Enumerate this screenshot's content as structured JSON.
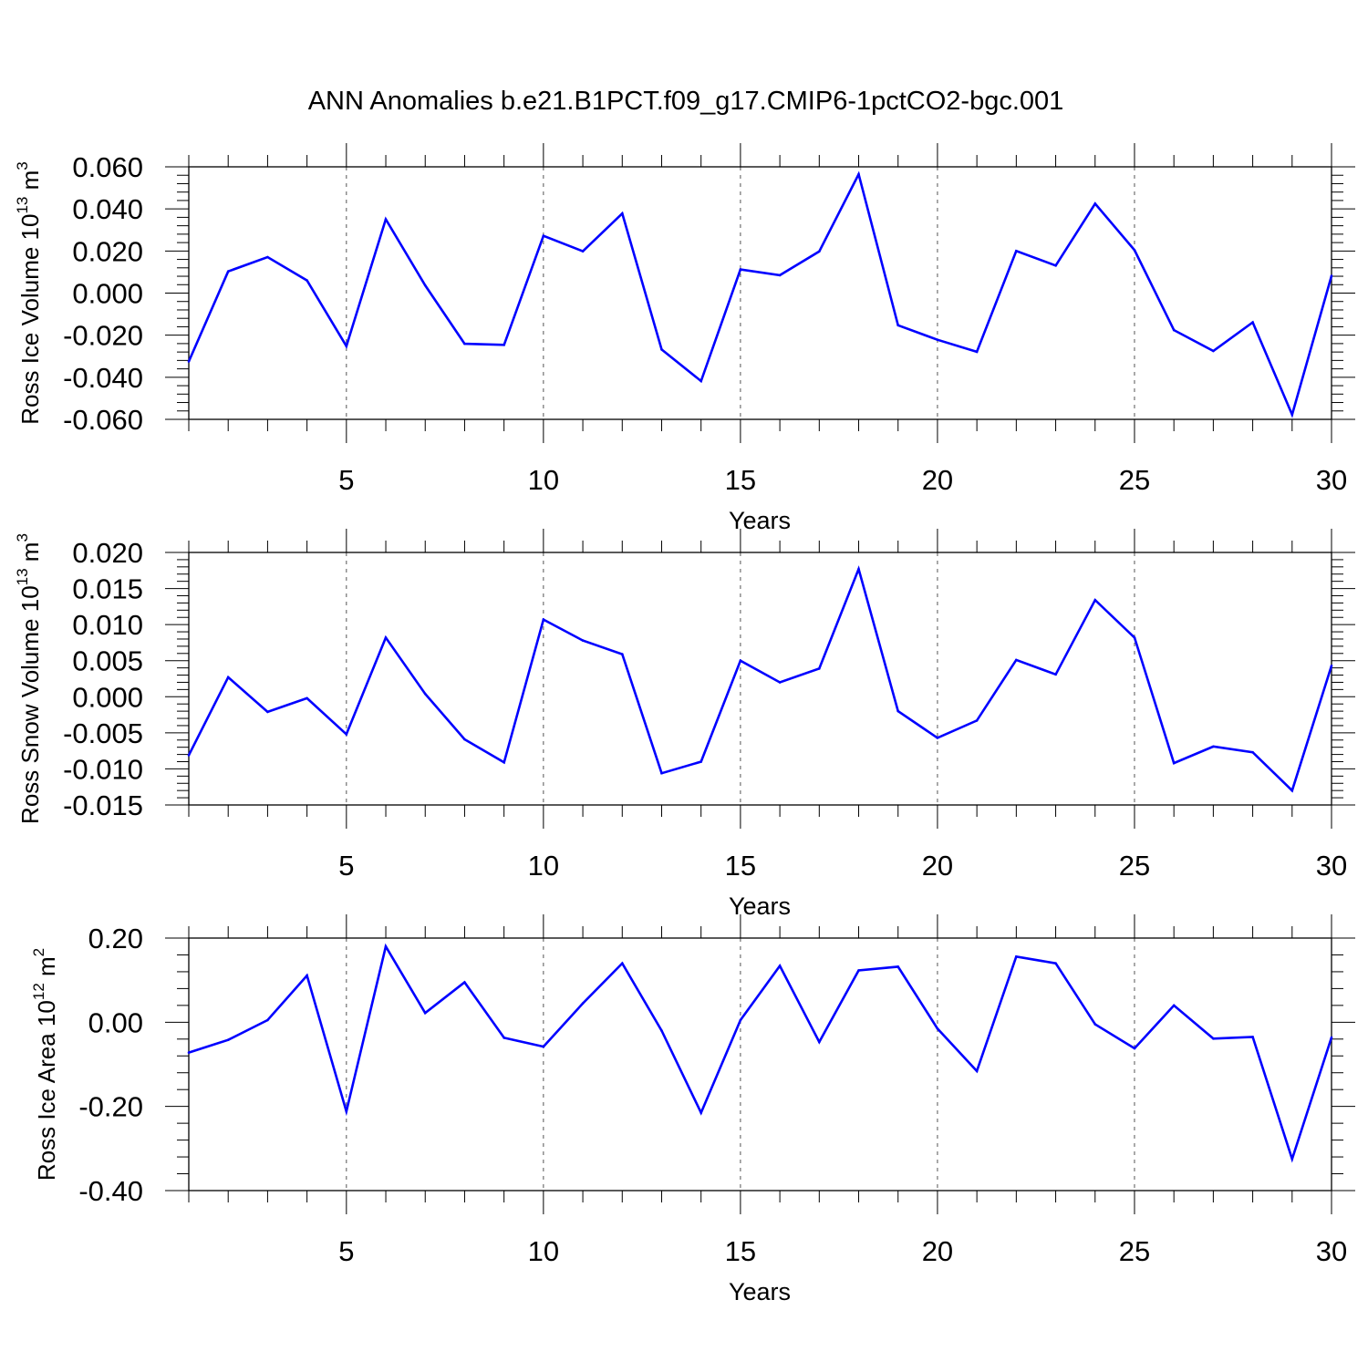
{
  "title": "ANN Anomalies b.e21.B1PCT.f09_g17.CMIP6-1pctCO2-bgc.001",
  "line_color": "#0000ff",
  "chart_data": [
    {
      "type": "line",
      "ylabel": "Ross Ice Volume 10",
      "ylabel_exp": "13",
      "ylabel_unit": " m",
      "ylabel_unit_exp": "3",
      "xlabel": "Years",
      "xlim": [
        1,
        30
      ],
      "ylim": [
        -0.06,
        0.06
      ],
      "x_ticks": [
        5,
        10,
        15,
        20,
        25,
        30
      ],
      "y_ticks": [
        "0.060",
        "0.040",
        "0.020",
        "0.000",
        "-0.020",
        "-0.040",
        "-0.060"
      ],
      "x": [
        1,
        2,
        3,
        4,
        5,
        6,
        7,
        8,
        9,
        10,
        11,
        12,
        13,
        14,
        15,
        16,
        17,
        18,
        19,
        20,
        21,
        22,
        23,
        24,
        25,
        26,
        27,
        28,
        29,
        30
      ],
      "values": [
        -0.0325,
        0.0103,
        0.0171,
        0.006,
        -0.0252,
        0.0351,
        0.0037,
        -0.0241,
        -0.0246,
        0.0272,
        0.0199,
        0.0378,
        -0.0268,
        -0.0418,
        0.0112,
        0.0085,
        0.0198,
        0.0565,
        -0.0153,
        -0.0222,
        -0.0279,
        0.02,
        0.0131,
        0.0425,
        0.0204,
        -0.0176,
        -0.0275,
        -0.0139,
        -0.0578,
        0.0082
      ]
    },
    {
      "type": "line",
      "ylabel": "Ross Snow Volume 10",
      "ylabel_exp": "13",
      "ylabel_unit": " m",
      "ylabel_unit_exp": "3",
      "xlabel": "Years",
      "xlim": [
        1,
        30
      ],
      "ylim": [
        -0.015,
        0.02
      ],
      "x_ticks": [
        5,
        10,
        15,
        20,
        25,
        30
      ],
      "y_ticks": [
        "0.020",
        "0.015",
        "0.010",
        "0.005",
        "0.000",
        "-0.005",
        "-0.010",
        "-0.015"
      ],
      "x": [
        1,
        2,
        3,
        4,
        5,
        6,
        7,
        8,
        9,
        10,
        11,
        12,
        13,
        14,
        15,
        16,
        17,
        18,
        19,
        20,
        21,
        22,
        23,
        24,
        25,
        26,
        27,
        28,
        29,
        30
      ],
      "values": [
        -0.0081,
        0.0027,
        -0.0021,
        -0.0002,
        -0.0052,
        0.0082,
        0.0004,
        -0.0059,
        -0.0091,
        0.0107,
        0.0078,
        0.0059,
        -0.0106,
        -0.009,
        0.005,
        0.002,
        0.0039,
        0.0177,
        -0.002,
        -0.0057,
        -0.0033,
        0.0051,
        0.0031,
        0.0134,
        0.0082,
        -0.0092,
        -0.0069,
        -0.0077,
        -0.013,
        0.0043
      ]
    },
    {
      "type": "line",
      "ylabel": "Ross Ice Area 10",
      "ylabel_exp": "12",
      "ylabel_unit": " m",
      "ylabel_unit_exp": "2",
      "xlabel": "Years",
      "xlim": [
        1,
        30
      ],
      "ylim": [
        -0.4,
        0.2
      ],
      "x_ticks": [
        5,
        10,
        15,
        20,
        25,
        30
      ],
      "y_ticks": [
        "0.20",
        "0.00",
        "-0.20",
        "-0.40"
      ],
      "x": [
        1,
        2,
        3,
        4,
        5,
        6,
        7,
        8,
        9,
        10,
        11,
        12,
        13,
        14,
        15,
        16,
        17,
        18,
        19,
        20,
        21,
        22,
        23,
        24,
        25,
        26,
        27,
        28,
        29,
        30
      ],
      "values": [
        -0.072,
        -0.042,
        0.005,
        0.111,
        -0.212,
        0.18,
        0.022,
        0.095,
        -0.037,
        -0.058,
        0.045,
        0.14,
        -0.02,
        -0.215,
        0.005,
        0.134,
        -0.047,
        0.123,
        0.132,
        -0.015,
        -0.116,
        0.156,
        0.14,
        -0.005,
        -0.062,
        0.04,
        -0.039,
        -0.035,
        -0.325,
        -0.036
      ]
    }
  ]
}
